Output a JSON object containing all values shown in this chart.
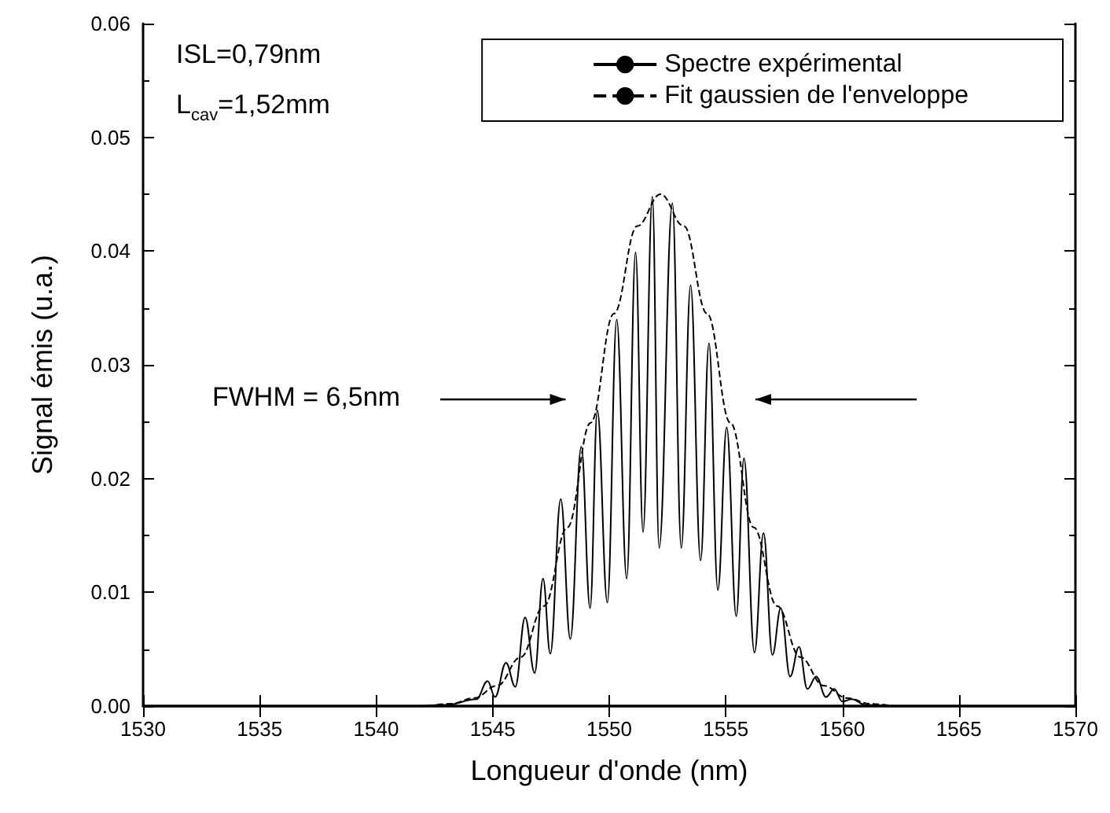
{
  "chart_data": {
    "type": "line",
    "xlabel": "Longueur d'onde (nm)",
    "ylabel": "Signal émis (u.a.)",
    "annotations": [
      "ISL=0,79nm",
      "L$_{cav}$=1,52mm",
      "FWHM = 6,5nm"
    ],
    "xlim": [
      1530,
      1570
    ],
    "xticks": [
      1530,
      1535,
      1540,
      1545,
      1550,
      1555,
      1560,
      1565,
      1570
    ],
    "ylim": [
      0,
      0.06
    ],
    "yticks": [
      {
        "value": 0,
        "label": "0.00"
      },
      0.01,
      0.02,
      0.03,
      0.04,
      0.05,
      0.06
    ],
    "grid": false,
    "legend": "top right",
    "marker": "none",
    "series": [
      {
        "name": "Spectre expérimental",
        "color": "#000000",
        "line_style": "solid",
        "x": [
          1542,
          1543,
          1544.3,
          1544.78,
          1545.1,
          1545.57,
          1545.97,
          1546.39,
          1546.8,
          1547.16,
          1547.47,
          1547.92,
          1548.33,
          1548.8,
          1549.18,
          1549.49,
          1549.92,
          1550.32,
          1550.75,
          1551.13,
          1551.45,
          1551.85,
          1552.14,
          1552.71,
          1553.09,
          1553.49,
          1553.92,
          1554.28,
          1554.66,
          1555.04,
          1555.45,
          1555.78,
          1556.23,
          1556.62,
          1557.0,
          1557.36,
          1557.76,
          1558.14,
          1558.5,
          1558.88,
          1559.3,
          1559.65,
          1560.0,
          1560.4,
          1561,
          1562
        ],
        "values": [
          0,
          0.0001,
          0.0006,
          0.0022,
          0.0008,
          0.0038,
          0.0017,
          0.0078,
          0.0029,
          0.0112,
          0.0046,
          0.0182,
          0.0059,
          0.0228,
          0.0086,
          0.026,
          0.0091,
          0.034,
          0.0112,
          0.0399,
          0.0153,
          0.0448,
          0.0139,
          0.0442,
          0.0139,
          0.037,
          0.0128,
          0.0319,
          0.0102,
          0.0245,
          0.0079,
          0.0218,
          0.0047,
          0.0152,
          0.0045,
          0.0086,
          0.0026,
          0.0052,
          0.0015,
          0.0026,
          0.0008,
          0.0015,
          0.0004,
          0.0006,
          0.0001,
          0
        ]
      },
      {
        "name": "Fit gaussien de l'enveloppe",
        "color": "#000000",
        "line_style": "dashed",
        "x": [
          1542.2,
          1543.2,
          1544.2,
          1545.2,
          1546.2,
          1547.2,
          1548.2,
          1549.2,
          1550.2,
          1551.2,
          1552.2,
          1553.2,
          1554.2,
          1555.2,
          1556.2,
          1557.2,
          1558.2,
          1559.2,
          1560.2,
          1561.2,
          1562.2
        ],
        "values": [
          0,
          0.0002,
          0.0007,
          0.0018,
          0.0043,
          0.0088,
          0.0157,
          0.0249,
          0.0345,
          0.0422,
          0.045,
          0.0422,
          0.0345,
          0.0249,
          0.0157,
          0.0088,
          0.0043,
          0.0018,
          0.0007,
          0.0002,
          0
        ]
      }
    ]
  }
}
